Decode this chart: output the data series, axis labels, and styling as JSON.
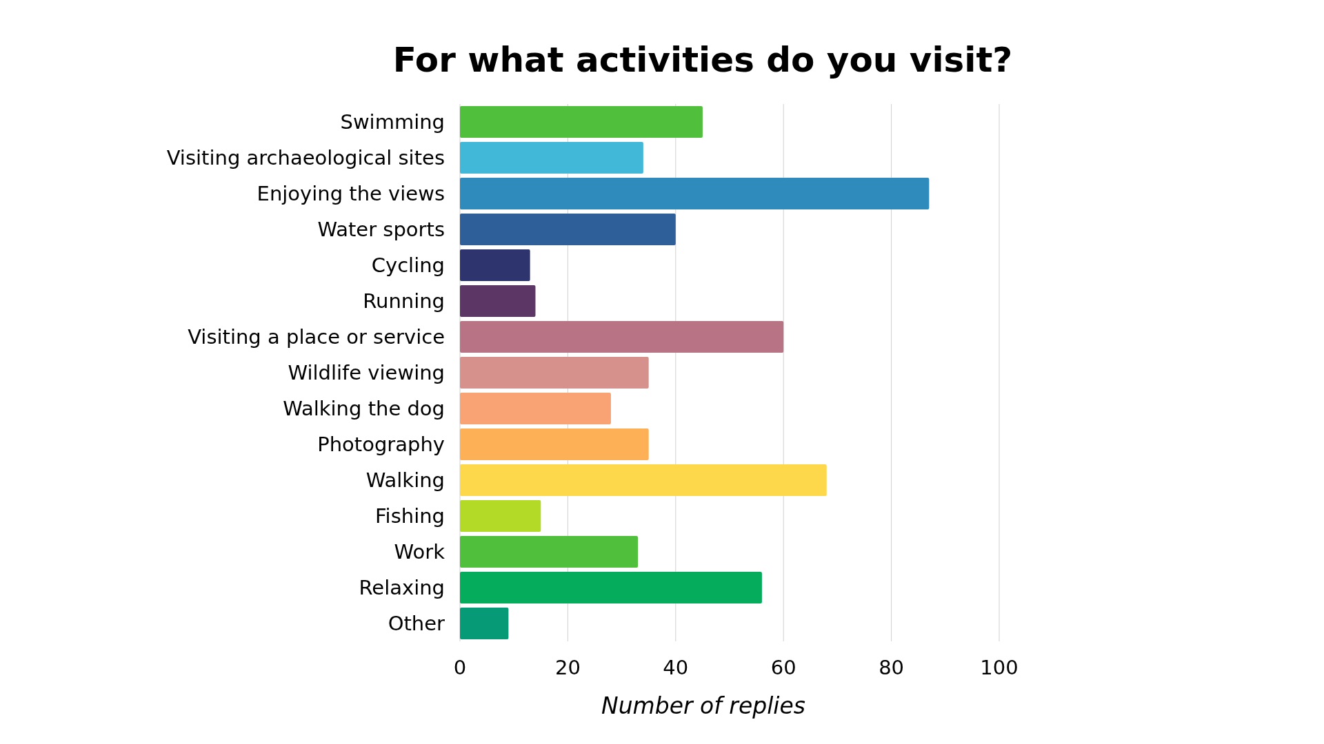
{
  "chart_data": {
    "type": "bar",
    "orientation": "horizontal",
    "title": "For what activities do you visit?",
    "xlabel": "Number of replies",
    "categories": [
      "Swimming",
      "Visiting archaeological sites",
      "Enjoying the views",
      "Water sports",
      "Cycling",
      "Running",
      "Visiting a place or service",
      "Wildlife viewing",
      "Walking the dog",
      "Photography",
      "Walking",
      "Fishing",
      "Work",
      "Relaxing",
      "Other"
    ],
    "values": [
      45,
      34,
      87,
      40,
      13,
      14,
      60,
      35,
      28,
      35,
      68,
      15,
      33,
      56,
      9
    ],
    "colors": [
      "#50c03c",
      "#42b8d8",
      "#2e8bbb",
      "#2e5f98",
      "#2e356e",
      "#5c3664",
      "#b87384",
      "#d6918c",
      "#f9a274",
      "#fdb055",
      "#fdd84a",
      "#b2da26",
      "#50c03c",
      "#05ac5c",
      "#069b76"
    ],
    "xlim": [
      0,
      100
    ],
    "xticks": [
      0,
      20,
      40,
      60,
      80,
      100
    ],
    "grid": "x"
  }
}
